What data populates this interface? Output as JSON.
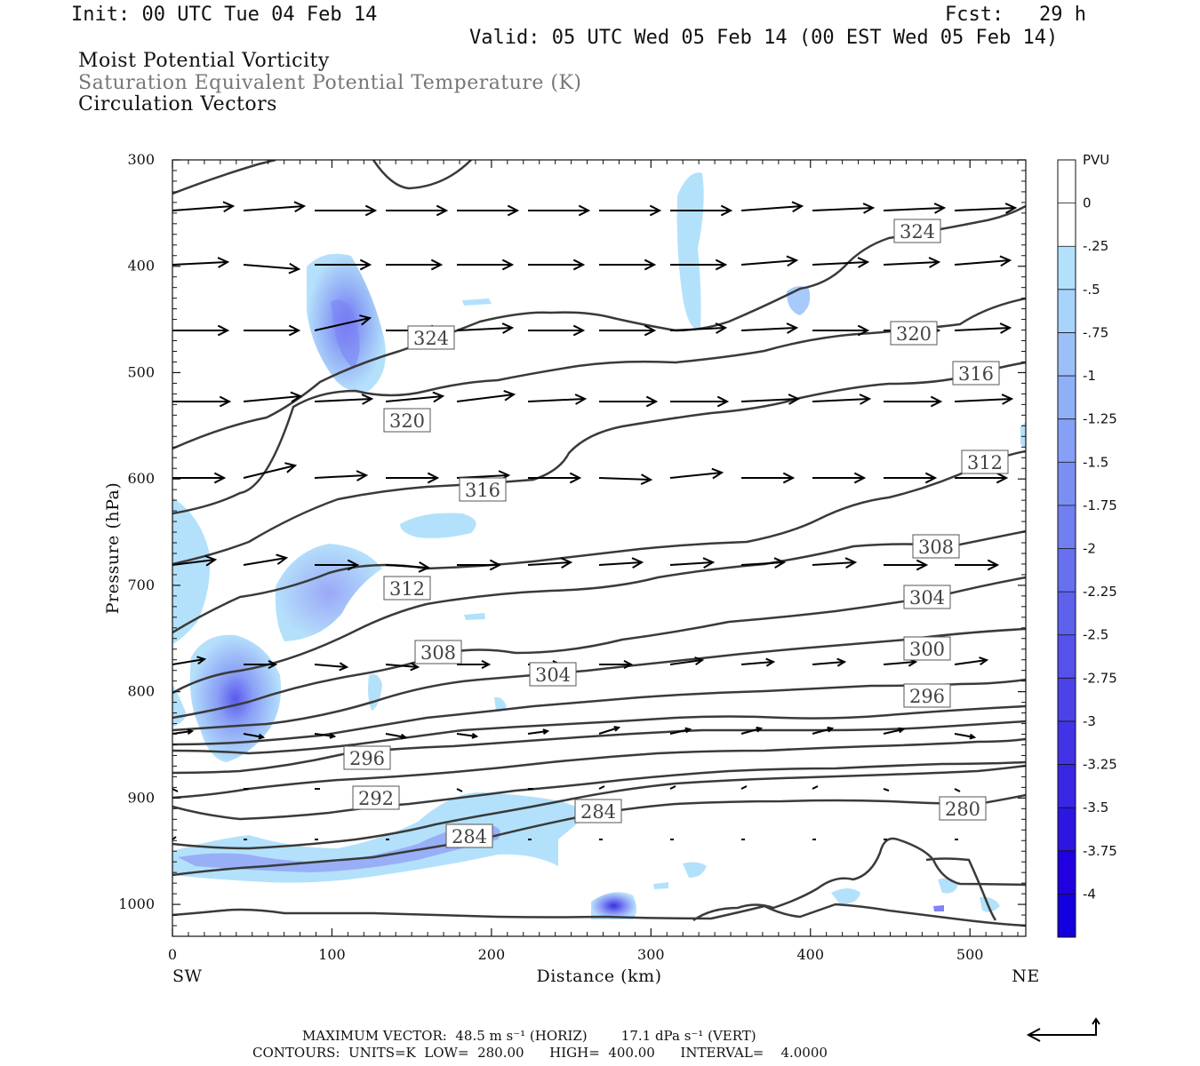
{
  "header": {
    "init": "Init: 00 UTC Tue 04 Feb 14",
    "fcst": "Fcst:   29 h",
    "valid": "Valid: 05 UTC Wed 05 Feb 14 (00 EST Wed 05 Feb 14)"
  },
  "titles": {
    "line1": "Moist Potential Vorticity",
    "line2": "Saturation Equivalent Potential Temperature (K)",
    "line3": "Circulation Vectors"
  },
  "footer": {
    "line1": "MAXIMUM VECTOR:  48.5 m s⁻¹ (HORIZ)        17.1 dPa s⁻¹ (VERT)",
    "line2": "CONTOURS:  UNITS=K  LOW=  280.00      HIGH=  400.00      INTERVAL=    4.0000"
  },
  "colors": {
    "contour": "#3a3a3a",
    "vector": "#000000",
    "cb_fills": [
      "#ffffff",
      "#ffffff",
      "#b3e1fb",
      "#a8d3fa",
      "#9bc0f8",
      "#8fb0f6",
      "#85a0f4",
      "#7b8ff2",
      "#717ff0",
      "#6770ee",
      "#5d61ec",
      "#5452ea",
      "#4b43e8",
      "#4234e6",
      "#3926e4",
      "#2d15e2",
      "#2000e0",
      "#1300de"
    ]
  },
  "chart_data": {
    "type": "cross-section",
    "xlabel": "Distance (km)",
    "ylabel": "Pressure (hPa)",
    "xlim": [
      0,
      535
    ],
    "ylim": [
      1030,
      300
    ],
    "x_ticks": [
      0,
      100,
      200,
      300,
      400,
      500
    ],
    "y_ticks": [
      300,
      400,
      500,
      600,
      700,
      800,
      900,
      1000
    ],
    "x_end_labels": {
      "left": "SW",
      "right": "NE"
    },
    "colorbar": {
      "units": "PVU",
      "labels": [
        "0",
        "-.25",
        "-.5",
        "-.75",
        "-1",
        "-1.25",
        "-1.5",
        "-1.75",
        "-2",
        "-2.25",
        "-2.5",
        "-2.75",
        "-3",
        "-3.25",
        "-3.5",
        "-3.75",
        "-4"
      ]
    },
    "contour_labels": [
      {
        "text": "324",
        "x": 485,
        "y": 380
      },
      {
        "text": "324",
        "x": 1032,
        "y": 260
      },
      {
        "text": "320",
        "x": 1028,
        "y": 375
      },
      {
        "text": "320",
        "x": 458,
        "y": 473
      },
      {
        "text": "316",
        "x": 1098,
        "y": 420
      },
      {
        "text": "316",
        "x": 543,
        "y": 551
      },
      {
        "text": "312",
        "x": 1108,
        "y": 520
      },
      {
        "text": "312",
        "x": 458,
        "y": 662
      },
      {
        "text": "308",
        "x": 1053,
        "y": 615
      },
      {
        "text": "308",
        "x": 493,
        "y": 734
      },
      {
        "text": "304",
        "x": 1043,
        "y": 672
      },
      {
        "text": "304",
        "x": 622,
        "y": 759
      },
      {
        "text": "300",
        "x": 1043,
        "y": 730
      },
      {
        "text": "296",
        "x": 1043,
        "y": 783
      },
      {
        "text": "296",
        "x": 413,
        "y": 853
      },
      {
        "text": "292",
        "x": 423,
        "y": 898
      },
      {
        "text": "284",
        "x": 673,
        "y": 913
      },
      {
        "text": "284",
        "x": 528,
        "y": 941
      },
      {
        "text": "280",
        "x": 1083,
        "y": 910
      }
    ]
  }
}
